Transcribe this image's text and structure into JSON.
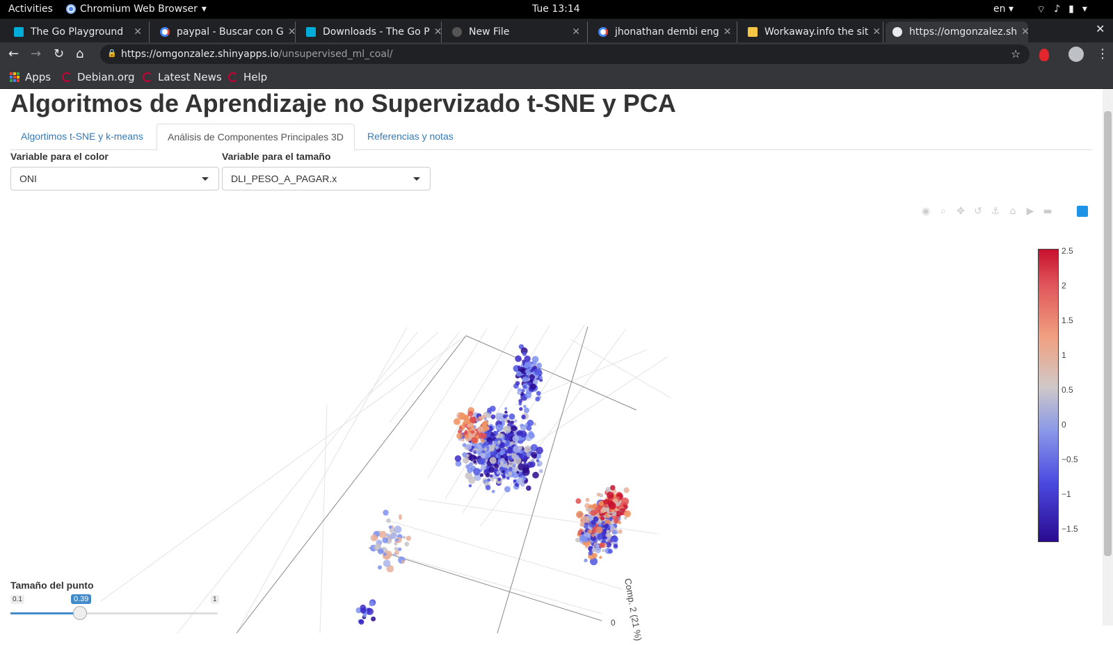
{
  "system_bar": {
    "activities": "Activities",
    "app_name": "Chromium Web Browser",
    "clock": "Tue 13:14",
    "language": "en"
  },
  "browser": {
    "tabs": [
      {
        "title": "The Go Playground",
        "icon": "gopher-icon",
        "color": "#00add8"
      },
      {
        "title": "paypal - Buscar con G",
        "icon": "google-icon",
        "color": "#ffffff"
      },
      {
        "title": "Downloads - The Go P",
        "icon": "gopher-icon",
        "color": "#00add8"
      },
      {
        "title": "New File",
        "icon": "github-icon",
        "color": "#333333"
      },
      {
        "title": "jhonathan dembi eng",
        "icon": "google-icon",
        "color": "#ffffff"
      },
      {
        "title": "Workaway.info the sit",
        "icon": "workaway-icon",
        "color": "#f6c544"
      },
      {
        "title": "https://omgonzalez.sh",
        "icon": "globe-icon",
        "color": "#e8eaed"
      }
    ],
    "url_host": "https://omgonzalez.shinyapps.io",
    "url_path": "/unsupervised_ml_coal/",
    "bookmarks": [
      {
        "label": "Apps"
      },
      {
        "label": "Debian.org"
      },
      {
        "label": "Latest News"
      },
      {
        "label": "Help"
      }
    ]
  },
  "page": {
    "title": "Algoritmos de Aprendizaje no Supervizado t-SNE y PCA",
    "tabs": [
      {
        "label": "Algortimos t-SNE y k-means"
      },
      {
        "label": "Análisis de Componentes Principales 3D"
      },
      {
        "label": "Referencias y notas"
      }
    ],
    "color_select": {
      "label": "Variable para el color",
      "value": "ONI"
    },
    "size_select": {
      "label": "Variable para el tamaño",
      "value": "DLI_PESO_A_PAGAR.x"
    },
    "plot_axis_label": "Comp. 2 (21 %)",
    "plot_axis_tick": "0",
    "colorbar_ticks": [
      "2.5",
      "2",
      "1.5",
      "1",
      "0.5",
      "0",
      "−0.5",
      "−1",
      "−1.5"
    ],
    "slider": {
      "label": "Tamaño del punto",
      "min": "0.1",
      "max": "1",
      "value": "0.39"
    }
  },
  "colors": {
    "accent": "#337ab7",
    "high": "#c8102e",
    "mid": "#d0c8c8",
    "low": "#2a0a90"
  }
}
